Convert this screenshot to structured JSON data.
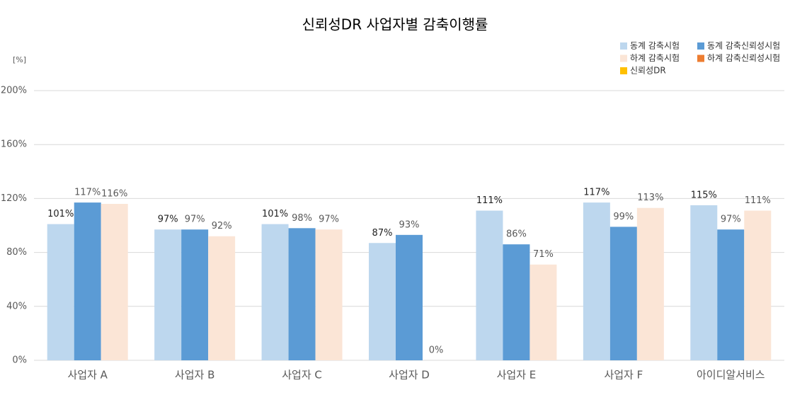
{
  "chart_data": {
    "type": "bar",
    "title": "신뢰성DR 사업자별 감축이행률",
    "y_label": "[%]",
    "categories": [
      "사업자 A",
      "사업자 B",
      "사업자 C",
      "사업자 D",
      "사업자 E",
      "사업자 F",
      "아이디알서비스"
    ],
    "series": [
      {
        "name": "동계 감축시험",
        "color": "#bdd7ee",
        "values": [
          101,
          97,
          101,
          87,
          111,
          117,
          115
        ],
        "value_labels": [
          "101%",
          "97%",
          "101%",
          "87%",
          "111%",
          "117%",
          "115%"
        ]
      },
      {
        "name": "동계 감축신뢰성시험",
        "color": "#5b9bd5",
        "values": [
          117,
          97,
          98,
          93,
          86,
          99,
          97
        ],
        "value_labels": [
          "117%",
          "97%",
          "98%",
          "93%",
          "86%",
          "99%",
          "97%"
        ]
      },
      {
        "name": "하계 감축시험",
        "color": "#fbe5d6",
        "values": [
          116,
          92,
          97,
          0,
          71,
          113,
          111
        ],
        "value_labels": [
          "116%",
          "92%",
          "97%",
          "0%",
          "71%",
          "113%",
          "111%"
        ]
      },
      {
        "name": "하계 감축신뢰성시험",
        "color": "#ed7d31",
        "values": [
          null,
          null,
          null,
          null,
          null,
          null,
          null
        ]
      },
      {
        "name": "신뢰성DR",
        "color": "#ffc000",
        "values": [
          null,
          null,
          null,
          null,
          null,
          null,
          null
        ]
      }
    ],
    "ylim": [
      0,
      200
    ],
    "yticks": [
      {
        "value": 0,
        "label": "0%"
      },
      {
        "value": 40,
        "label": "40%"
      },
      {
        "value": 80,
        "label": "80%"
      },
      {
        "value": 120,
        "label": "120%"
      },
      {
        "value": 160,
        "label": "160%"
      },
      {
        "value": 200,
        "label": "200%"
      }
    ],
    "grid": true,
    "legend": "top-right"
  }
}
